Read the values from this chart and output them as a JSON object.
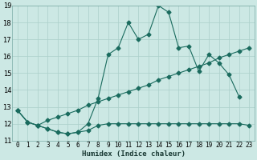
{
  "xlabel": "Humidex (Indice chaleur)",
  "bg_color": "#cce8e4",
  "grid_color": "#aacfca",
  "line_color": "#1a6b5e",
  "xlim": [
    -0.5,
    23.5
  ],
  "ylim": [
    11,
    19
  ],
  "xticks": [
    0,
    1,
    2,
    3,
    4,
    5,
    6,
    7,
    8,
    9,
    10,
    11,
    12,
    13,
    14,
    15,
    16,
    17,
    18,
    19,
    20,
    21,
    22,
    23
  ],
  "yticks": [
    11,
    12,
    13,
    14,
    15,
    16,
    17,
    18,
    19
  ],
  "series1_y": [
    12.8,
    12.1,
    11.9,
    11.7,
    11.5,
    11.4,
    11.5,
    12.0,
    13.5,
    16.1,
    16.5,
    18.0,
    17.0,
    17.3,
    19.0,
    18.6,
    16.5,
    16.6,
    15.1,
    16.1,
    15.6,
    14.9,
    13.6,
    null
  ],
  "series2_y": [
    12.8,
    12.1,
    11.9,
    11.7,
    11.5,
    11.4,
    11.5,
    11.6,
    11.9,
    12.0,
    12.0,
    12.0,
    12.0,
    12.0,
    12.0,
    12.0,
    12.0,
    12.0,
    12.0,
    12.0,
    12.0,
    12.0,
    12.0,
    11.9
  ],
  "series3_y": [
    12.8,
    12.1,
    11.9,
    12.2,
    12.4,
    12.6,
    12.8,
    13.1,
    13.3,
    13.5,
    13.7,
    13.9,
    14.1,
    14.3,
    14.6,
    14.8,
    15.0,
    15.2,
    15.4,
    15.6,
    15.9,
    16.1,
    16.3,
    16.5
  ],
  "tickfont_size": 5.5,
  "xlabel_fontsize": 6.5,
  "marker_size": 2.5
}
